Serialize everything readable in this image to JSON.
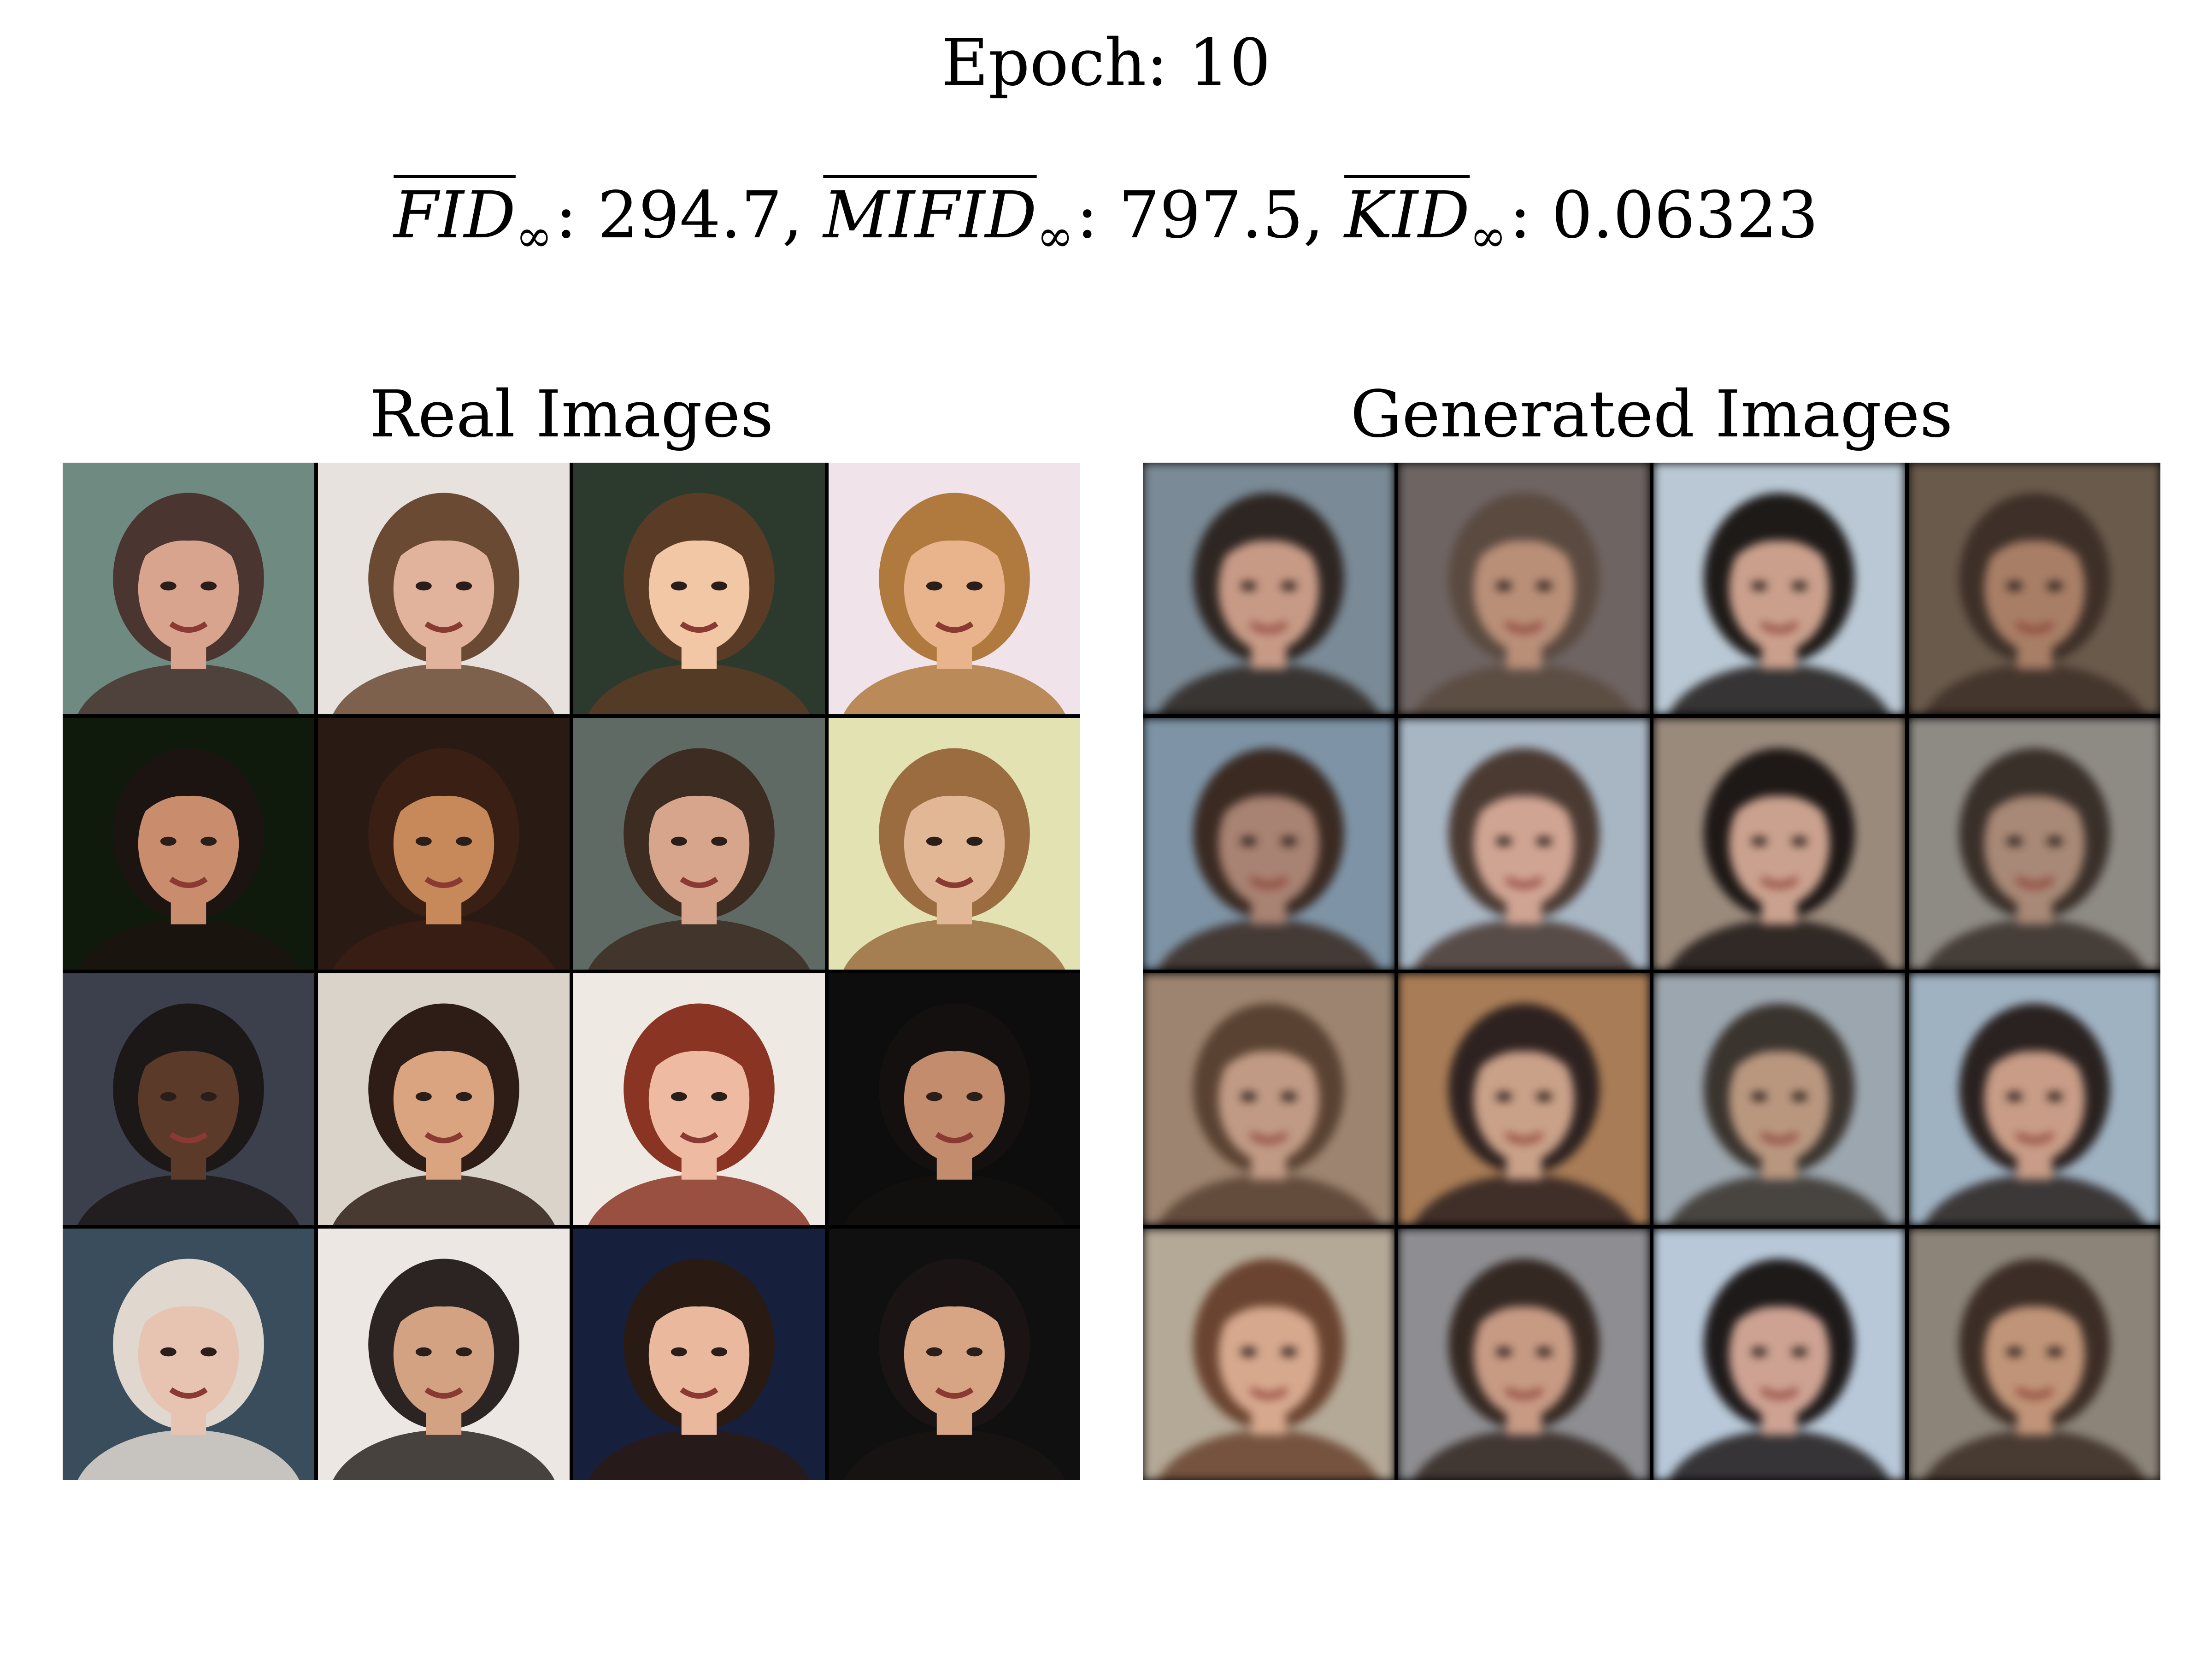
{
  "header": {
    "epoch_title": "Epoch: 10"
  },
  "metrics": {
    "fid_name": "FID",
    "fid_sub": "∞",
    "fid_value": ": 294.7, ",
    "mifid_name": "MIFID",
    "mifid_sub": "∞",
    "mifid_value": ": 797.5, ",
    "kid_name": "KID",
    "kid_sub": "∞",
    "kid_value": ": 0.06323"
  },
  "panels": {
    "real_title": "Real Images",
    "generated_title": "Generated Images"
  },
  "real_images": [
    {
      "bg": "#6f8a80",
      "skin": "#d9a48e",
      "hair": "#4a3530"
    },
    {
      "bg": "#e7e2de",
      "skin": "#e2b39c",
      "hair": "#6b4a34"
    },
    {
      "bg": "#2b3a2c",
      "skin": "#f1c7a6",
      "hair": "#5a3c26"
    },
    {
      "bg": "#f1e3ea",
      "skin": "#e9b38c",
      "hair": "#b07a3e"
    },
    {
      "bg": "#0f1a0c",
      "skin": "#c98d6e",
      "hair": "#1c1411"
    },
    {
      "bg": "#2a1a14",
      "skin": "#c8895a",
      "hair": "#3a1f14"
    },
    {
      "bg": "#5f6a64",
      "skin": "#d6a58c",
      "hair": "#3c2c22"
    },
    {
      "bg": "#e3e2b2",
      "skin": "#e2b795",
      "hair": "#9a6c3f"
    },
    {
      "bg": "#3c3f4c",
      "skin": "#5b3a2a",
      "hair": "#1d1818"
    },
    {
      "bg": "#d9d3ca",
      "skin": "#d9a47f",
      "hair": "#2e1d16"
    },
    {
      "bg": "#efe9e4",
      "skin": "#eebba2",
      "hair": "#8a3524"
    },
    {
      "bg": "#0d0d0d",
      "skin": "#c38c6c",
      "hair": "#141010"
    },
    {
      "bg": "#3a4d5c",
      "skin": "#e7c3b2",
      "hair": "#e0d8cf"
    },
    {
      "bg": "#ece7e2",
      "skin": "#d2a282",
      "hair": "#2c2422"
    },
    {
      "bg": "#16203c",
      "skin": "#eab89c",
      "hair": "#2a1a14"
    },
    {
      "bg": "#111010",
      "skin": "#d8a584",
      "hair": "#1a1414"
    }
  ],
  "generated_images": [
    {
      "bg": "#7a8a96",
      "skin": "#c79a86",
      "hair": "#2e2622"
    },
    {
      "bg": "#6e6462",
      "skin": "#b98f78",
      "hair": "#5a4a40"
    },
    {
      "bg": "#b9c8d4",
      "skin": "#caa08c",
      "hair": "#1e1a18"
    },
    {
      "bg": "#6a5a4c",
      "skin": "#a87e66",
      "hair": "#3e3028"
    },
    {
      "bg": "#7e94a6",
      "skin": "#a88272",
      "hair": "#3a2a22"
    },
    {
      "bg": "#a8b6c4",
      "skin": "#d0a493",
      "hair": "#4a3a32"
    },
    {
      "bg": "#9a8a7c",
      "skin": "#caa18e",
      "hair": "#1e1816"
    },
    {
      "bg": "#8e8a84",
      "skin": "#a88876",
      "hair": "#3a302a"
    },
    {
      "bg": "#9c8470",
      "skin": "#c09a84",
      "hair": "#5a4232"
    },
    {
      "bg": "#a87c56",
      "skin": "#c9a088",
      "hair": "#2e2220"
    },
    {
      "bg": "#9ca6ae",
      "skin": "#b9977f",
      "hair": "#3a342e"
    },
    {
      "bg": "#9fb2c2",
      "skin": "#c89c86",
      "hair": "#2a2220"
    },
    {
      "bg": "#b4a896",
      "skin": "#d6a88e",
      "hair": "#6a4430"
    },
    {
      "bg": "#8e8e92",
      "skin": "#c79a84",
      "hair": "#342822"
    },
    {
      "bg": "#b8c8d8",
      "skin": "#cda292",
      "hair": "#1e1a1a"
    },
    {
      "bg": "#8c8478",
      "skin": "#c09478",
      "hair": "#3c2e26"
    }
  ]
}
